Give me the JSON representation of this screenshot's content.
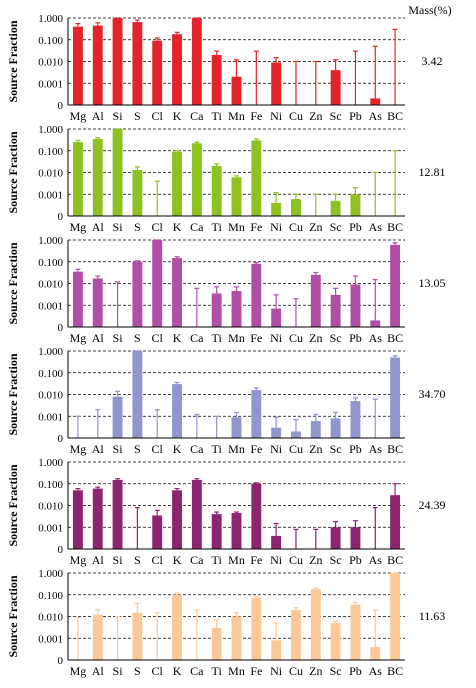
{
  "figure": {
    "mass_header": "Mass(%)",
    "y_label": "Source Fraction",
    "y_tick_labels": [
      "1.000",
      "0.100",
      "0.010",
      "0.001",
      "0"
    ]
  },
  "chart_data": [
    {
      "type": "bar",
      "ylabel": "Source Fraction",
      "yscale": "log",
      "ylim": [
        0.0001,
        1
      ],
      "grid": "dashed horizontal",
      "color": "#e3242b",
      "mass_percent": "3.42",
      "categories": [
        "Mg",
        "Al",
        "Si",
        "S",
        "Cl",
        "K",
        "Ca",
        "Ti",
        "Mn",
        "Fe",
        "Ni",
        "Cu",
        "Zn",
        "Sc",
        "Pb",
        "As",
        "BC"
      ],
      "values": [
        0.4,
        0.45,
        1.0,
        0.65,
        0.09,
        0.18,
        1.0,
        0.02,
        0.002,
        0.0,
        0.009,
        0.0,
        0.0,
        0.004,
        0.0,
        0.0002,
        0.0
      ],
      "error_upper": [
        0.55,
        0.6,
        1.0,
        0.8,
        0.12,
        0.22,
        1.0,
        0.03,
        0.012,
        0.03,
        0.015,
        0.01,
        0.01,
        0.012,
        0.03,
        0.05,
        0.3
      ]
    },
    {
      "type": "bar",
      "ylabel": "Source Fraction",
      "yscale": "log",
      "ylim": [
        0.0001,
        1
      ],
      "grid": "dashed horizontal",
      "color": "#8dc021",
      "mass_percent": "12.81",
      "categories": [
        "Mg",
        "Al",
        "Si",
        "S",
        "Cl",
        "K",
        "Ca",
        "Ti",
        "Mn",
        "Fe",
        "Ni",
        "Cu",
        "Zn",
        "Sc",
        "Pb",
        "As",
        "BC"
      ],
      "values": [
        0.25,
        0.35,
        1.0,
        0.013,
        0.0,
        0.09,
        0.22,
        0.02,
        0.006,
        0.3,
        0.0004,
        0.0006,
        0.0,
        0.0005,
        0.001,
        0.0,
        0.0
      ],
      "error_upper": [
        0.3,
        0.4,
        1.0,
        0.018,
        0.004,
        0.1,
        0.25,
        0.025,
        0.007,
        0.35,
        0.0012,
        0.001,
        0.001,
        0.001,
        0.002,
        0.01,
        0.1
      ]
    },
    {
      "type": "bar",
      "ylabel": "Source Fraction",
      "yscale": "log",
      "ylim": [
        0.0001,
        1
      ],
      "grid": "dashed horizontal",
      "color": "#b04fa5",
      "mass_percent": "13.05",
      "categories": [
        "Mg",
        "Al",
        "Si",
        "S",
        "Cl",
        "K",
        "Ca",
        "Ti",
        "Mn",
        "Fe",
        "Ni",
        "Cu",
        "Zn",
        "Sc",
        "Pb",
        "As",
        "BC"
      ],
      "values": [
        0.035,
        0.017,
        0.0,
        0.1,
        1.0,
        0.15,
        0.0,
        0.0035,
        0.0045,
        0.08,
        0.0007,
        0.0,
        0.025,
        0.003,
        0.009,
        0.0002,
        0.6
      ],
      "error_upper": [
        0.045,
        0.022,
        0.012,
        0.11,
        1.0,
        0.17,
        0.006,
        0.007,
        0.007,
        0.09,
        0.003,
        0.002,
        0.032,
        0.006,
        0.022,
        0.015,
        0.75
      ]
    },
    {
      "type": "bar",
      "ylabel": "Source Fraction",
      "yscale": "log",
      "ylim": [
        0.0001,
        1
      ],
      "grid": "dashed horizontal",
      "color": "#9196cc",
      "mass_percent": "34.70",
      "categories": [
        "Mg",
        "Al",
        "Si",
        "S",
        "Cl",
        "K",
        "Ca",
        "Ti",
        "Mn",
        "Fe",
        "Ni",
        "Cu",
        "Zn",
        "Sc",
        "Pb",
        "As",
        "BC"
      ],
      "values": [
        0.0,
        0.0,
        0.008,
        1.0,
        0.0,
        0.03,
        0.0,
        0.0,
        0.0009,
        0.016,
        0.0003,
        0.0002,
        0.0006,
        0.0008,
        0.005,
        0.0,
        0.5
      ],
      "error_upper": [
        0.001,
        0.002,
        0.014,
        1.0,
        0.002,
        0.036,
        0.0012,
        0.001,
        0.0015,
        0.02,
        0.0009,
        0.0007,
        0.0012,
        0.0015,
        0.007,
        0.006,
        0.6
      ]
    },
    {
      "type": "bar",
      "ylabel": "Source Fraction",
      "yscale": "log",
      "ylim": [
        0.0001,
        1
      ],
      "grid": "dashed horizontal",
      "color": "#8c2470",
      "mass_percent": "24.39",
      "categories": [
        "Mg",
        "Al",
        "Si",
        "S",
        "Cl",
        "K",
        "Ca",
        "Ti",
        "Mn",
        "Fe",
        "Ni",
        "Cu",
        "Zn",
        "Sc",
        "Pb",
        "As",
        "BC"
      ],
      "values": [
        0.05,
        0.06,
        0.15,
        0.0,
        0.0035,
        0.05,
        0.15,
        0.004,
        0.0045,
        0.1,
        0.0004,
        0.0,
        0.0,
        0.001,
        0.001,
        0.0,
        0.03
      ],
      "error_upper": [
        0.06,
        0.07,
        0.17,
        0.008,
        0.006,
        0.06,
        0.17,
        0.005,
        0.005,
        0.11,
        0.0015,
        0.0008,
        0.0008,
        0.0018,
        0.002,
        0.008,
        0.1
      ]
    },
    {
      "type": "bar",
      "ylabel": "Source Fraction",
      "yscale": "log",
      "ylim": [
        0.0001,
        1
      ],
      "grid": "dashed horizontal",
      "color": "#fbc998",
      "mass_percent": "11.63",
      "categories": [
        "Mg",
        "Al",
        "Si",
        "S",
        "Cl",
        "K",
        "Ca",
        "Ti",
        "Mn",
        "Fe",
        "Ni",
        "Cu",
        "Zn",
        "Sc",
        "Pb",
        "As",
        "BC"
      ],
      "values": [
        0.0,
        0.012,
        0.0,
        0.015,
        0.0,
        0.1,
        0.0,
        0.003,
        0.01,
        0.07,
        0.0008,
        0.02,
        0.18,
        0.005,
        0.035,
        0.0004,
        1.0
      ],
      "error_upper": [
        0.009,
        0.02,
        0.01,
        0.04,
        0.015,
        0.12,
        0.02,
        0.007,
        0.015,
        0.08,
        0.005,
        0.025,
        0.2,
        0.006,
        0.045,
        0.02,
        1.0
      ]
    }
  ]
}
